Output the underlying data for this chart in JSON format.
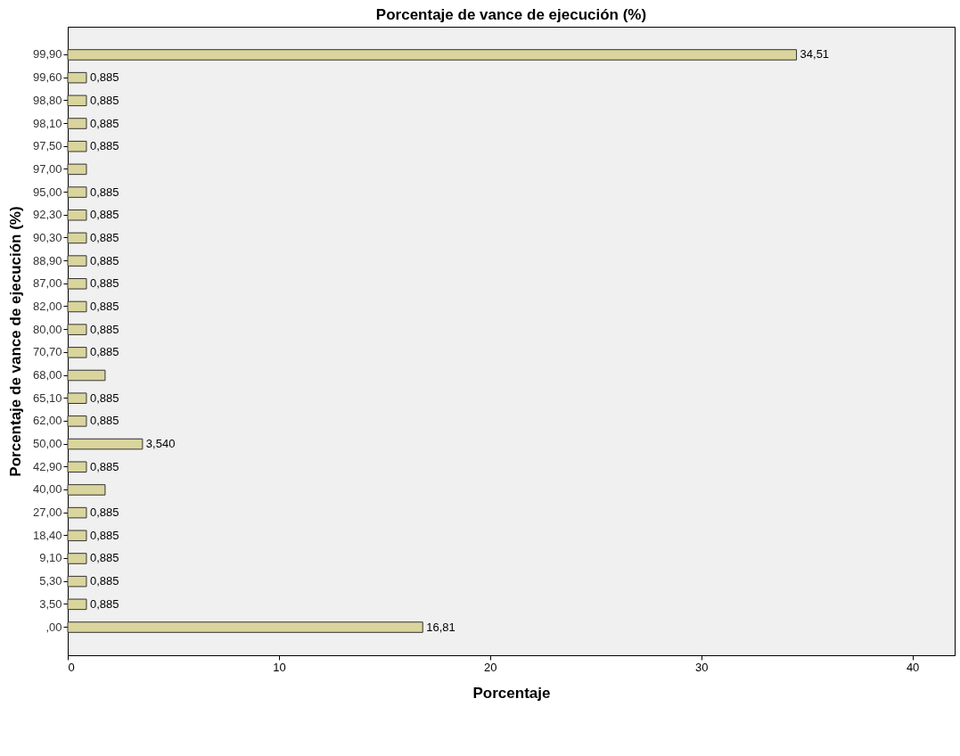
{
  "chart_data": {
    "type": "bar",
    "orientation": "horizontal",
    "title": "Porcentaje de vance de ejecución (%)",
    "xlabel": "Porcentaje",
    "ylabel": "Porcentaje de vance de ejecución (%)",
    "categories": [
      "99,90",
      "99,60",
      "98,80",
      "98,10",
      "97,50",
      "97,00",
      "95,00",
      "92,30",
      "90,30",
      "88,90",
      "87,00",
      "82,00",
      "80,00",
      "70,70",
      "68,00",
      "65,10",
      "62,00",
      "50,00",
      "42,90",
      "40,00",
      "27,00",
      "18,40",
      "9,10",
      "5,30",
      "3,50",
      ",00"
    ],
    "values": [
      34.51,
      0.885,
      0.885,
      0.885,
      0.885,
      0.885,
      0.885,
      0.885,
      0.885,
      0.885,
      0.885,
      0.885,
      0.885,
      0.885,
      1.77,
      0.885,
      0.885,
      3.54,
      0.885,
      1.77,
      0.885,
      0.885,
      0.885,
      0.885,
      0.885,
      16.81
    ],
    "value_labels": [
      "34,51",
      "0,885",
      "0,885",
      "0,885",
      "0,885",
      null,
      "0,885",
      "0,885",
      "0,885",
      "0,885",
      "0,885",
      "0,885",
      "0,885",
      "0,885",
      null,
      "0,885",
      "0,885",
      "3,540",
      "0,885",
      null,
      "0,885",
      "0,885",
      "0,885",
      "0,885",
      "0,885",
      "16,81"
    ],
    "color": "#d9d59c",
    "xlim": [
      0,
      42
    ],
    "xticks": [
      0,
      10,
      20,
      30,
      40
    ],
    "grid": false
  }
}
